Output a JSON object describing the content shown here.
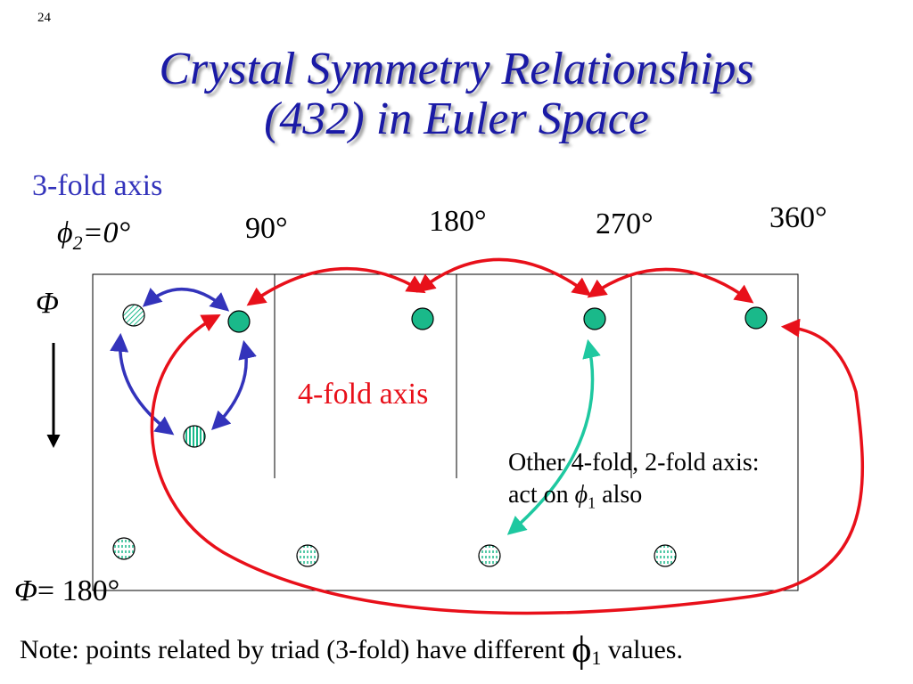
{
  "slide_number": "24",
  "title": {
    "line1": "Crystal Symmetry Relationships",
    "line2": "(432) in Euler Space"
  },
  "labels": {
    "three_fold_axis": "3-fold axis",
    "phi2_symbol": "ϕ",
    "phi2_sub": "2",
    "phi2_value": "=0°",
    "deg90": "90°",
    "deg180": "180°",
    "deg270": "270°",
    "deg360": "360°",
    "Phi_symbol": "Φ",
    "Phi_end_symbol": "Φ",
    "Phi_end_value": "= 180°",
    "four_fold_axis": "4-fold axis",
    "other_line1": "Other 4-fold, 2-fold axis:",
    "other_line2_prefix": "act on ",
    "other_phi": "ϕ",
    "other_sub": "1",
    "other_line2_suffix": " also"
  },
  "note": {
    "prefix": "Note: points related by triad (3-fold) have different ",
    "phi": "ϕ",
    "sub": "1",
    "suffix": " values."
  },
  "colors": {
    "title": "#1a1aa6",
    "three_fold": "#3333bb",
    "four_fold": "#e8101a",
    "other_axis": "#1ec8a0",
    "point_fill": "#1ab98a",
    "text": "#000000"
  }
}
